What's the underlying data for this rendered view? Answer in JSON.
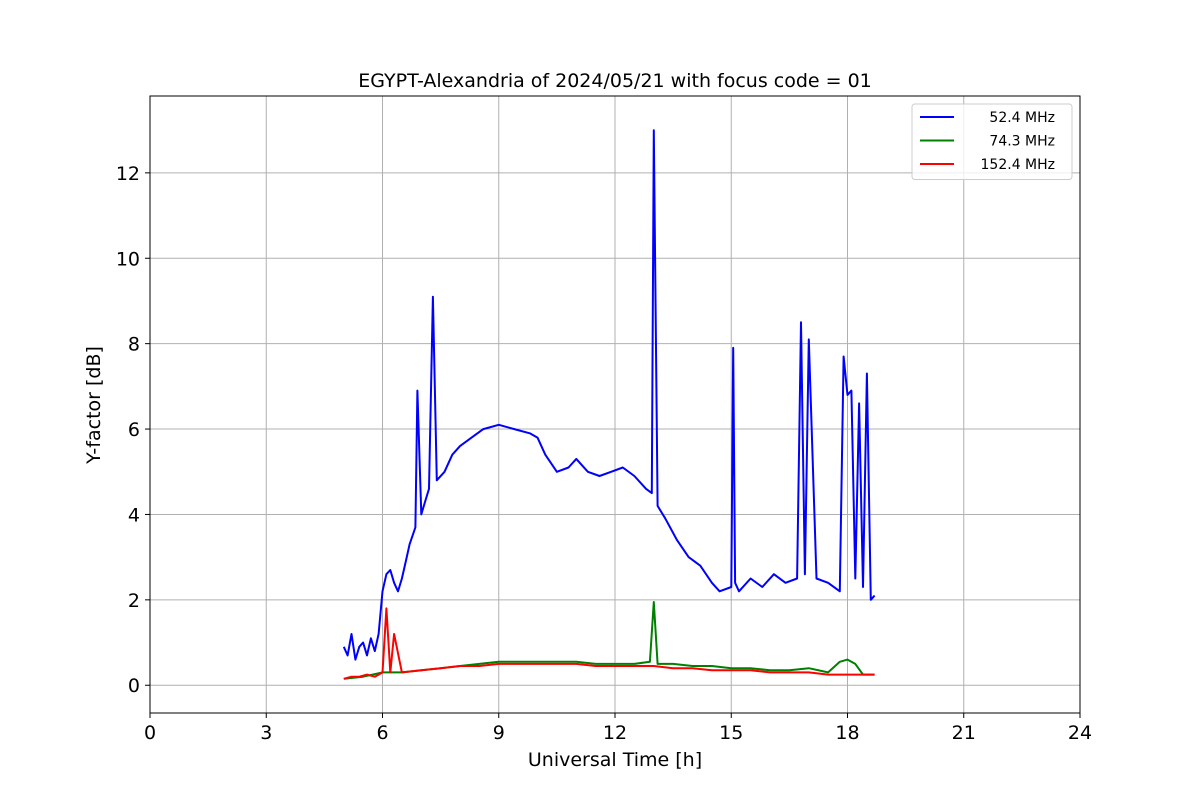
{
  "chart_data": {
    "type": "line",
    "title": "EGYPT-Alexandria of 2024/05/21 with focus code = 01",
    "xlabel": "Universal Time [h]",
    "ylabel": "Y-factor [dB]",
    "xlim": [
      0,
      24
    ],
    "ylim": [
      -0.65,
      13.8
    ],
    "xticks": [
      0,
      3,
      6,
      9,
      12,
      15,
      18,
      21,
      24
    ],
    "yticks": [
      0,
      2,
      4,
      6,
      8,
      10,
      12
    ],
    "grid": true,
    "legend_position": "top-right",
    "series": [
      {
        "name": "52.4 MHz",
        "color": "#0000ff",
        "x": [
          5.0,
          5.1,
          5.2,
          5.3,
          5.4,
          5.5,
          5.6,
          5.7,
          5.8,
          5.9,
          6.0,
          6.1,
          6.2,
          6.3,
          6.4,
          6.5,
          6.6,
          6.7,
          6.85,
          6.9,
          7.0,
          7.1,
          7.2,
          7.3,
          7.4,
          7.6,
          7.8,
          8.0,
          8.3,
          8.6,
          9.0,
          9.4,
          9.8,
          10.0,
          10.2,
          10.5,
          10.8,
          11.0,
          11.3,
          11.6,
          11.9,
          12.2,
          12.5,
          12.8,
          12.95,
          13.0,
          13.1,
          13.3,
          13.6,
          13.9,
          14.2,
          14.5,
          14.7,
          15.0,
          15.05,
          15.1,
          15.2,
          15.5,
          15.8,
          16.1,
          16.4,
          16.7,
          16.8,
          16.9,
          17.0,
          17.2,
          17.5,
          17.8,
          17.9,
          18.0,
          18.1,
          18.2,
          18.3,
          18.4,
          18.5,
          18.6,
          18.7
        ],
        "y": [
          0.9,
          0.7,
          1.2,
          0.6,
          0.9,
          1.0,
          0.7,
          1.1,
          0.8,
          1.2,
          2.2,
          2.6,
          2.7,
          2.4,
          2.2,
          2.5,
          2.9,
          3.3,
          3.7,
          6.9,
          4.0,
          4.3,
          4.6,
          9.1,
          4.8,
          5.0,
          5.4,
          5.6,
          5.8,
          6.0,
          6.1,
          6.0,
          5.9,
          5.8,
          5.4,
          5.0,
          5.1,
          5.3,
          5.0,
          4.9,
          5.0,
          5.1,
          4.9,
          4.6,
          4.5,
          13.0,
          4.2,
          3.9,
          3.4,
          3.0,
          2.8,
          2.4,
          2.2,
          2.3,
          7.9,
          2.4,
          2.2,
          2.5,
          2.3,
          2.6,
          2.4,
          2.5,
          8.5,
          2.6,
          8.1,
          2.5,
          2.4,
          2.2,
          7.7,
          6.8,
          6.9,
          2.5,
          6.6,
          2.3,
          7.3,
          2.0,
          2.1
        ]
      },
      {
        "name": "74.3 MHz",
        "color": "#008000",
        "x": [
          5.0,
          5.5,
          6.0,
          6.5,
          7.0,
          7.5,
          8.0,
          8.5,
          9.0,
          9.5,
          10.0,
          10.5,
          11.0,
          11.5,
          12.0,
          12.5,
          12.9,
          13.0,
          13.1,
          13.5,
          14.0,
          14.5,
          15.0,
          15.5,
          16.0,
          16.5,
          17.0,
          17.5,
          17.8,
          18.0,
          18.2,
          18.4,
          18.7
        ],
        "y": [
          0.15,
          0.2,
          0.3,
          0.3,
          0.35,
          0.4,
          0.45,
          0.5,
          0.55,
          0.55,
          0.55,
          0.55,
          0.55,
          0.5,
          0.5,
          0.5,
          0.55,
          1.95,
          0.5,
          0.5,
          0.45,
          0.45,
          0.4,
          0.4,
          0.35,
          0.35,
          0.4,
          0.3,
          0.55,
          0.6,
          0.5,
          0.25,
          0.25
        ]
      },
      {
        "name": "152.4 MHz",
        "color": "#ff0000",
        "x": [
          5.0,
          5.2,
          5.4,
          5.6,
          5.8,
          6.0,
          6.1,
          6.2,
          6.3,
          6.5,
          7.0,
          7.5,
          8.0,
          8.5,
          9.0,
          9.5,
          10.0,
          10.5,
          11.0,
          11.5,
          12.0,
          12.5,
          13.0,
          13.5,
          14.0,
          14.5,
          15.0,
          15.5,
          16.0,
          16.5,
          17.0,
          17.5,
          18.0,
          18.5,
          18.7
        ],
        "y": [
          0.15,
          0.2,
          0.2,
          0.25,
          0.2,
          0.3,
          1.8,
          0.3,
          1.2,
          0.3,
          0.35,
          0.4,
          0.45,
          0.45,
          0.5,
          0.5,
          0.5,
          0.5,
          0.5,
          0.45,
          0.45,
          0.45,
          0.45,
          0.4,
          0.4,
          0.35,
          0.35,
          0.35,
          0.3,
          0.3,
          0.3,
          0.25,
          0.25,
          0.25,
          0.25
        ]
      }
    ]
  }
}
